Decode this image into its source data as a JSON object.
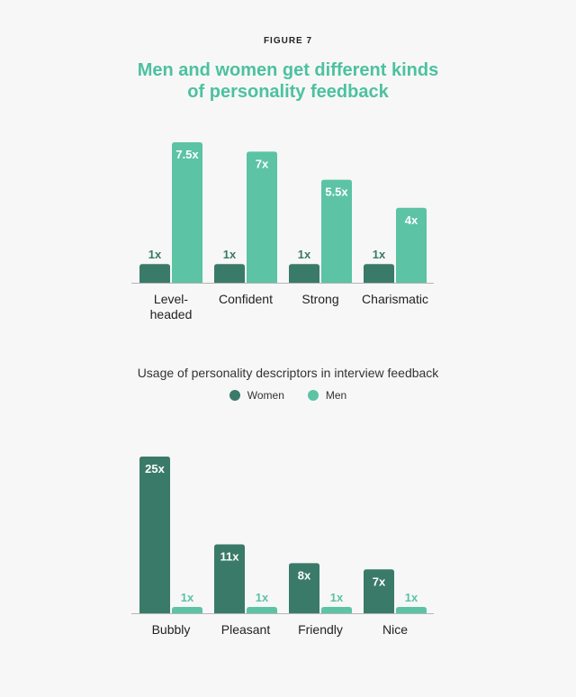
{
  "figure_label": "FIGURE 7",
  "title_lines": [
    "Men and women get different kinds",
    "of personality feedback"
  ],
  "caption": "Usage of personality descriptors in interview feedback",
  "legend": [
    {
      "label": "Women",
      "color": "#3a7a68"
    },
    {
      "label": "Men",
      "color": "#5cc3a5"
    }
  ],
  "colors": {
    "women": "#3a7a68",
    "men": "#5cc3a5",
    "axis": "#b5b5b5",
    "title": "#4cc1a0"
  },
  "chart_data": [
    {
      "type": "bar",
      "categories": [
        "Level-headed",
        "Confident",
        "Strong",
        "Charismatic"
      ],
      "category_lines": [
        [
          "Level-",
          "headed"
        ],
        [
          "Confident"
        ],
        [
          "Strong"
        ],
        [
          "Charismatic"
        ]
      ],
      "series": [
        {
          "name": "Women",
          "values": [
            1,
            1,
            1,
            1
          ],
          "labels": [
            "1x",
            "1x",
            "1x",
            "1x"
          ]
        },
        {
          "name": "Men",
          "values": [
            7.5,
            7,
            5.5,
            4
          ],
          "labels": [
            "7.5x",
            "7x",
            "5.5x",
            "4x"
          ]
        }
      ],
      "ylim": [
        0,
        7.5
      ]
    },
    {
      "type": "bar",
      "categories": [
        "Bubbly",
        "Pleasant",
        "Friendly",
        "Nice"
      ],
      "category_lines": [
        [
          "Bubbly"
        ],
        [
          "Pleasant"
        ],
        [
          "Friendly"
        ],
        [
          "Nice"
        ]
      ],
      "series": [
        {
          "name": "Women",
          "values": [
            25,
            11,
            8,
            7
          ],
          "labels": [
            "25x",
            "11x",
            "8x",
            "7x"
          ]
        },
        {
          "name": "Men",
          "values": [
            1,
            1,
            1,
            1
          ],
          "labels": [
            "1x",
            "1x",
            "1x",
            "1x"
          ]
        }
      ],
      "ylim": [
        0,
        25
      ]
    }
  ]
}
